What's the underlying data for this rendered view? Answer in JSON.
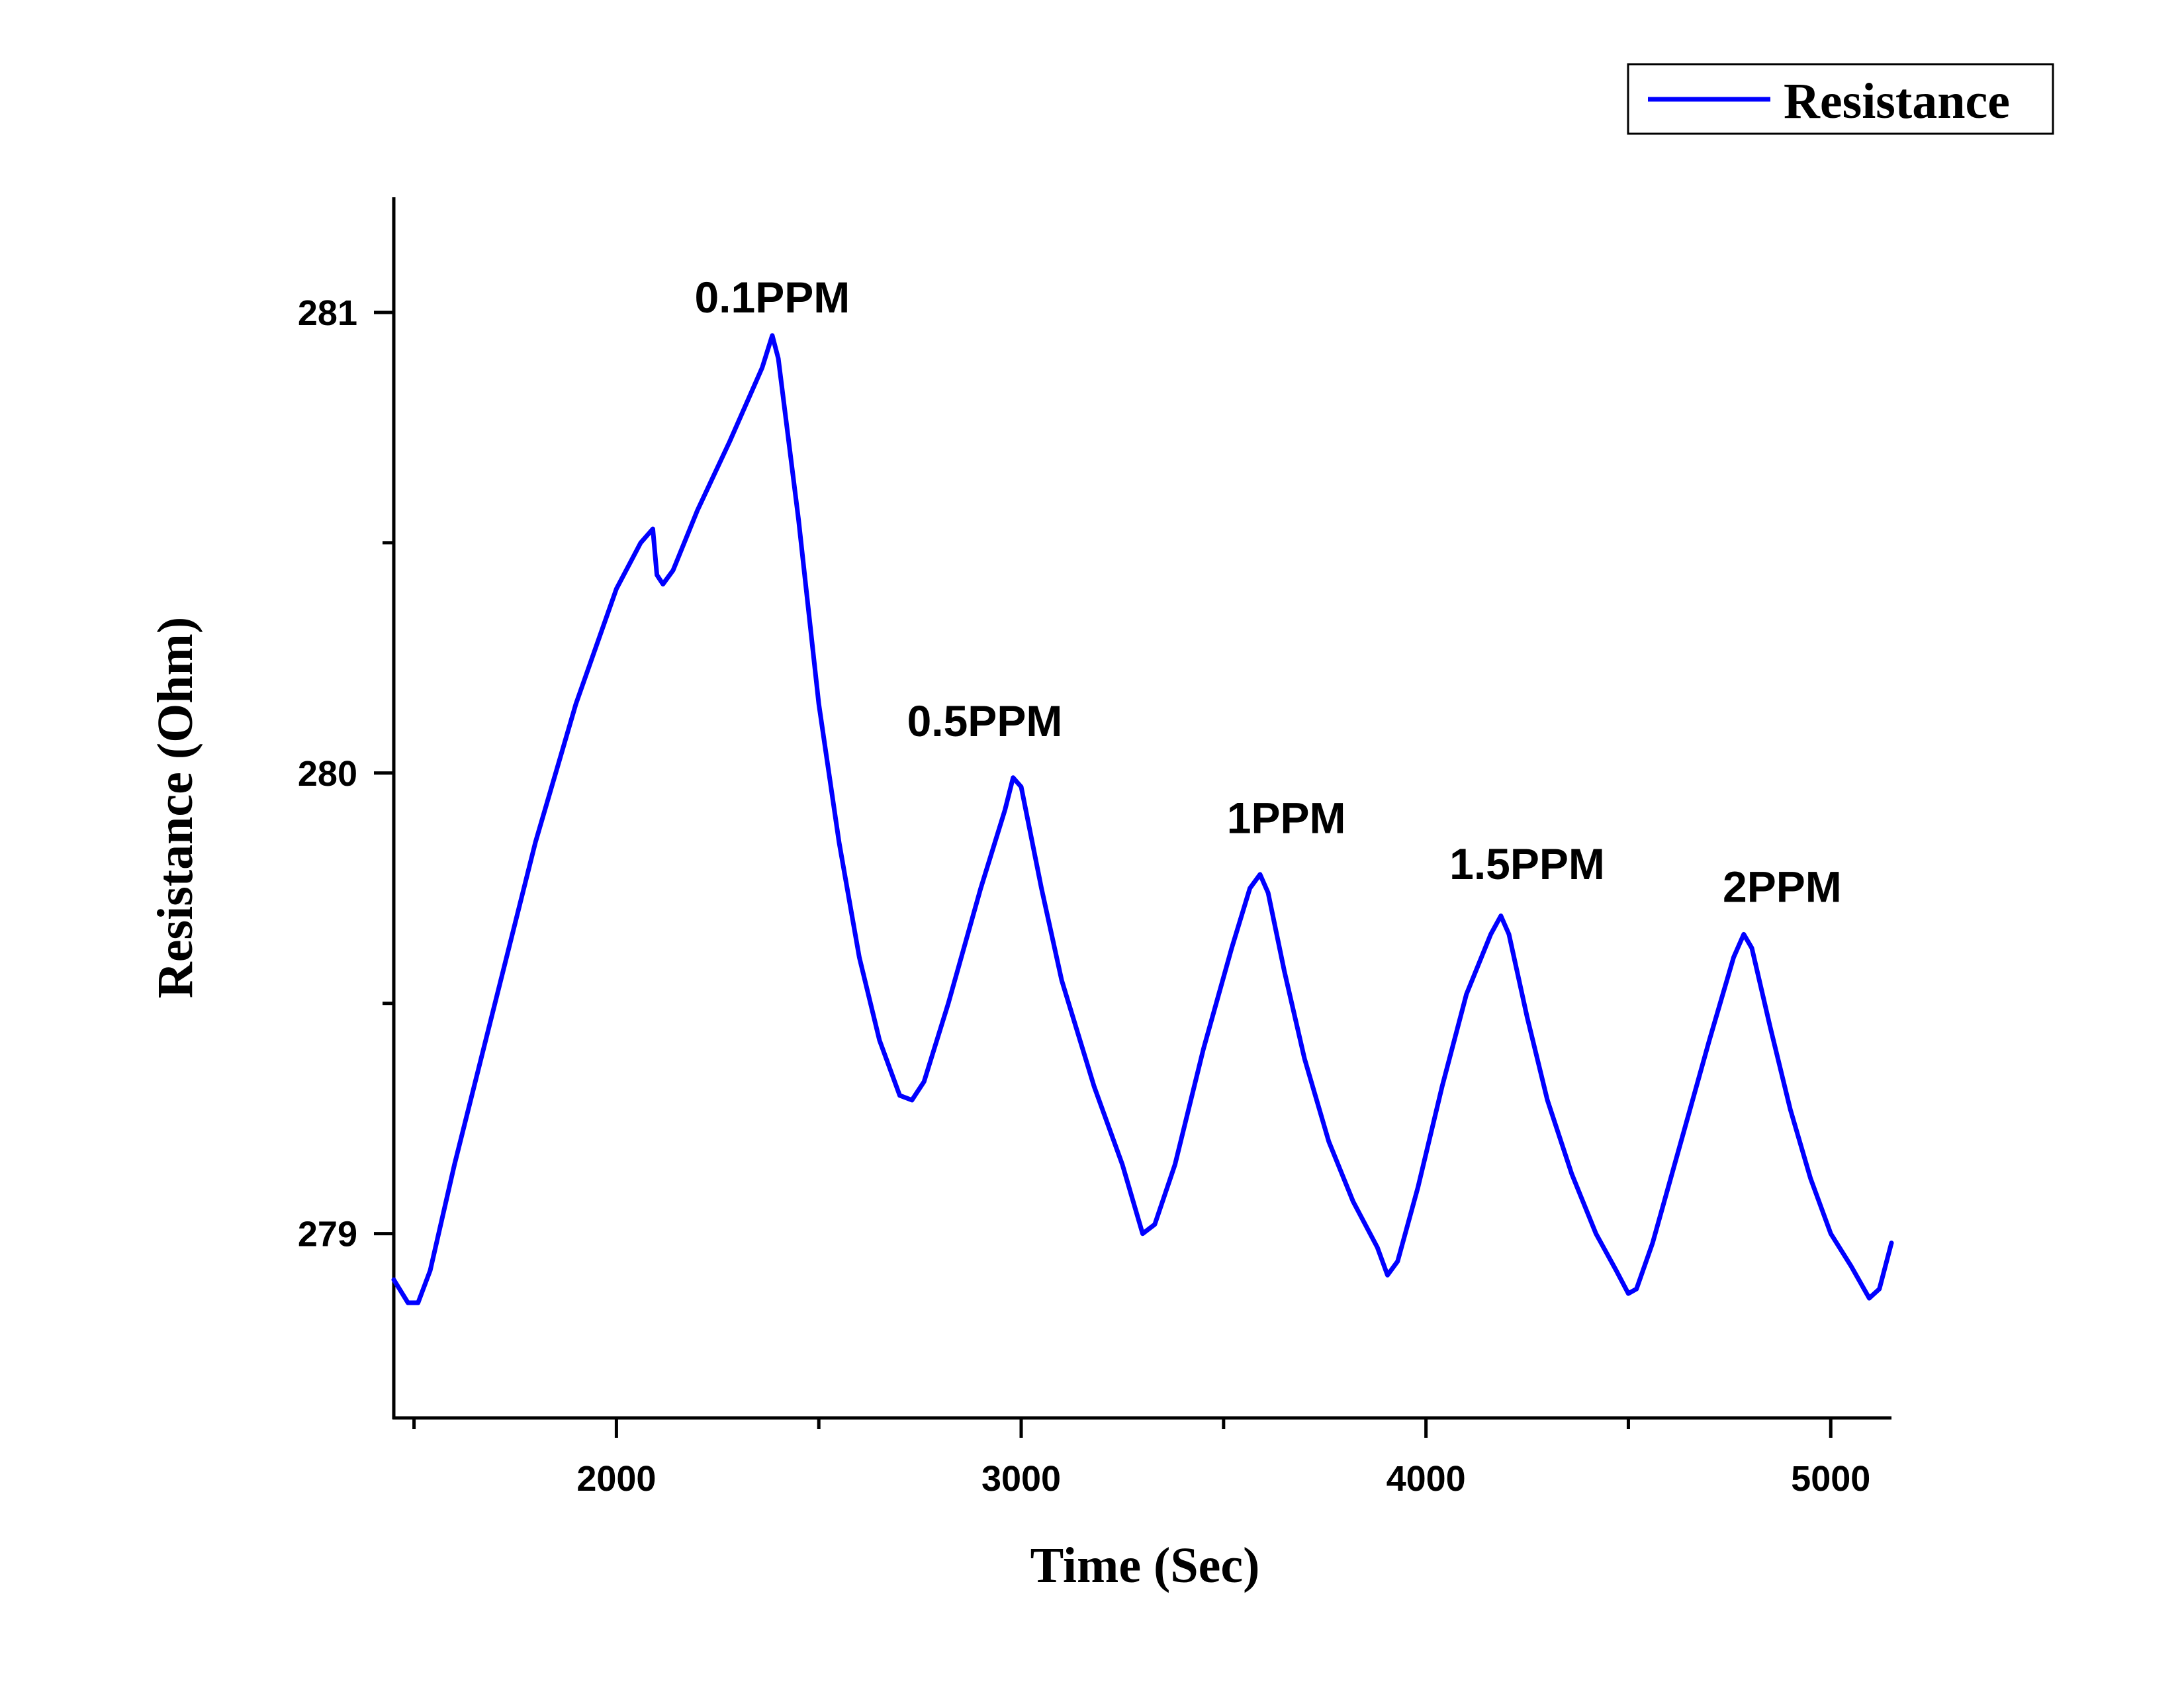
{
  "chart_data": {
    "type": "line",
    "title": "",
    "xlabel": "Time (Sec)",
    "ylabel": "Resistance (Ohm)",
    "xlim": [
      1450,
      5150
    ],
    "ylim": [
      278.6,
      281.25
    ],
    "x_ticks_major": [
      2000,
      3000,
      4000,
      5000
    ],
    "x_ticks_minor": [
      1500,
      2500,
      3500,
      4500
    ],
    "y_ticks_major": [
      279,
      280,
      281
    ],
    "y_ticks_minor": [
      279.5,
      280.5
    ],
    "x_tick_labels": [
      "2000",
      "3000",
      "4000",
      "5000"
    ],
    "y_tick_labels": [
      "279",
      "280",
      "281"
    ],
    "grid": false,
    "legend": {
      "position": "top-right",
      "entries": [
        "Resistance"
      ]
    },
    "series": [
      {
        "name": "Resistance",
        "color": "#0000ff",
        "points": [
          [
            1450,
            278.9
          ],
          [
            1485,
            278.85
          ],
          [
            1510,
            278.85
          ],
          [
            1540,
            278.92
          ],
          [
            1600,
            279.15
          ],
          [
            1700,
            279.5
          ],
          [
            1800,
            279.85
          ],
          [
            1900,
            280.15
          ],
          [
            2000,
            280.4
          ],
          [
            2060,
            280.5
          ],
          [
            2090,
            280.53
          ],
          [
            2100,
            280.43
          ],
          [
            2115,
            280.41
          ],
          [
            2140,
            280.44
          ],
          [
            2200,
            280.57
          ],
          [
            2280,
            280.72
          ],
          [
            2360,
            280.88
          ],
          [
            2385,
            280.95
          ],
          [
            2400,
            280.9
          ],
          [
            2450,
            280.55
          ],
          [
            2500,
            280.15
          ],
          [
            2550,
            279.85
          ],
          [
            2600,
            279.6
          ],
          [
            2650,
            279.42
          ],
          [
            2700,
            279.3
          ],
          [
            2730,
            279.29
          ],
          [
            2760,
            279.33
          ],
          [
            2820,
            279.5
          ],
          [
            2900,
            279.75
          ],
          [
            2960,
            279.92
          ],
          [
            2980,
            279.99
          ],
          [
            3000,
            279.97
          ],
          [
            3050,
            279.75
          ],
          [
            3100,
            279.55
          ],
          [
            3180,
            279.32
          ],
          [
            3250,
            279.15
          ],
          [
            3300,
            279.0
          ],
          [
            3330,
            279.02
          ],
          [
            3380,
            279.15
          ],
          [
            3450,
            279.4
          ],
          [
            3520,
            279.62
          ],
          [
            3565,
            279.75
          ],
          [
            3590,
            279.78
          ],
          [
            3610,
            279.74
          ],
          [
            3650,
            279.57
          ],
          [
            3700,
            279.38
          ],
          [
            3760,
            279.2
          ],
          [
            3820,
            279.07
          ],
          [
            3880,
            278.97
          ],
          [
            3905,
            278.91
          ],
          [
            3930,
            278.94
          ],
          [
            3980,
            279.1
          ],
          [
            4040,
            279.32
          ],
          [
            4100,
            279.52
          ],
          [
            4160,
            279.65
          ],
          [
            4185,
            279.69
          ],
          [
            4205,
            279.65
          ],
          [
            4250,
            279.47
          ],
          [
            4300,
            279.29
          ],
          [
            4360,
            279.13
          ],
          [
            4420,
            279.0
          ],
          [
            4470,
            278.92
          ],
          [
            4500,
            278.87
          ],
          [
            4520,
            278.88
          ],
          [
            4560,
            278.98
          ],
          [
            4630,
            279.2
          ],
          [
            4700,
            279.42
          ],
          [
            4760,
            279.6
          ],
          [
            4785,
            279.65
          ],
          [
            4805,
            279.62
          ],
          [
            4850,
            279.45
          ],
          [
            4900,
            279.27
          ],
          [
            4950,
            279.12
          ],
          [
            5000,
            279.0
          ],
          [
            5050,
            278.93
          ],
          [
            5095,
            278.86
          ],
          [
            5120,
            278.88
          ],
          [
            5150,
            278.98
          ]
        ]
      }
    ],
    "annotations": [
      {
        "text": "0.1PPM",
        "x": 2385,
        "y": 281.0
      },
      {
        "text": "0.5PPM",
        "x": 2910,
        "y": 280.08
      },
      {
        "text": "1PPM",
        "x": 3655,
        "y": 279.87
      },
      {
        "text": "1.5PPM",
        "x": 4250,
        "y": 279.77
      },
      {
        "text": "2PPM",
        "x": 4880,
        "y": 279.72
      }
    ]
  }
}
